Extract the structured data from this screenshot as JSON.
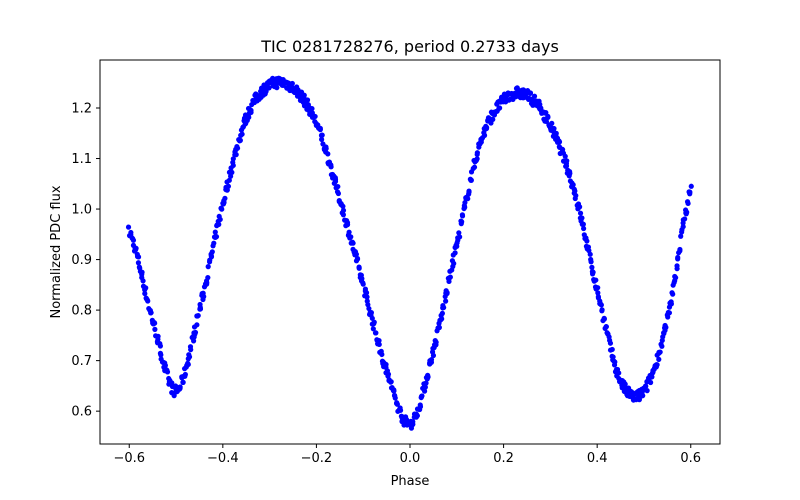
{
  "chart_data": {
    "type": "scatter",
    "title": "TIC 0281728276, period 0.2733 days",
    "xlabel": "Phase",
    "ylabel": "Normalized PDC flux",
    "xlim": [
      -0.6625,
      0.6625
    ],
    "ylim": [
      0.535,
      1.295
    ],
    "xticks": [
      -0.6,
      -0.4,
      -0.2,
      0.0,
      0.2,
      0.4,
      0.6
    ],
    "xtick_labels": [
      "−0.6",
      "−0.4",
      "−0.2",
      "0.0",
      "0.2",
      "0.4",
      "0.6"
    ],
    "yticks": [
      0.6,
      0.7,
      0.8,
      0.9,
      1.0,
      1.1,
      1.2
    ],
    "ytick_labels": [
      "0.6",
      "0.7",
      "0.8",
      "0.9",
      "1.0",
      "1.1",
      "1.2"
    ],
    "grid": false,
    "marker_color": "#0000ff",
    "series": [
      {
        "name": "PDC flux",
        "x": [
          -0.6,
          -0.55,
          -0.5,
          -0.45,
          -0.4,
          -0.35,
          -0.3,
          -0.25,
          -0.2,
          -0.15,
          -0.1,
          -0.05,
          0.0,
          0.05,
          0.1,
          0.15,
          0.2,
          0.25,
          0.3,
          0.35,
          0.4,
          0.45,
          0.5,
          0.55,
          0.6
        ],
        "y": [
          0.955,
          0.78,
          0.64,
          0.8,
          1.01,
          1.18,
          1.245,
          1.24,
          1.17,
          1.02,
          0.85,
          0.68,
          0.575,
          0.72,
          0.93,
          1.13,
          1.215,
          1.225,
          1.165,
          1.04,
          0.84,
          0.66,
          0.64,
          0.78,
          1.035
        ]
      }
    ]
  }
}
